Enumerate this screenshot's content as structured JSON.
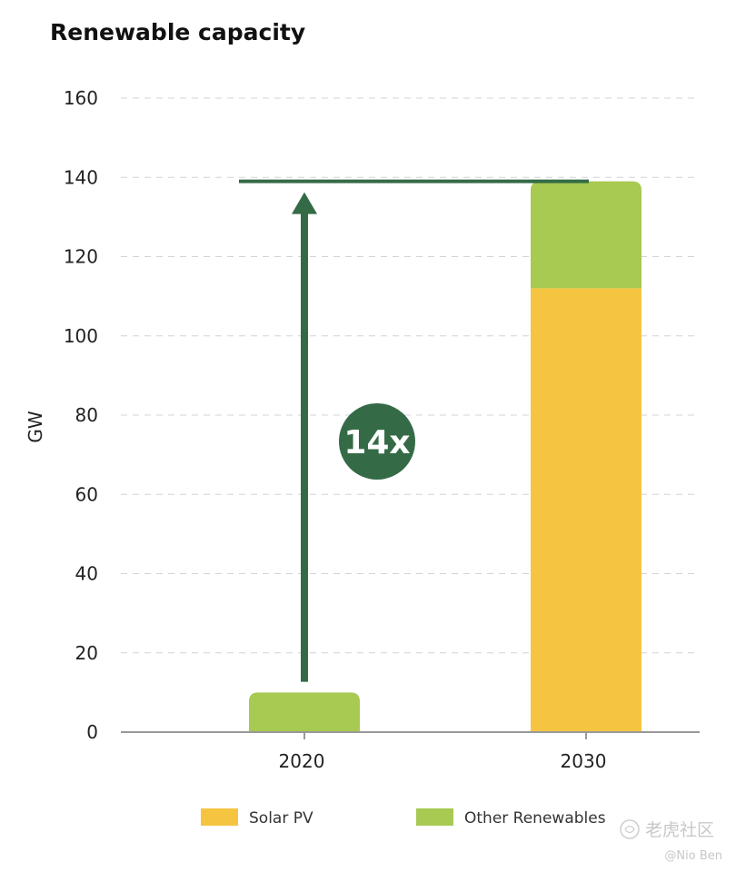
{
  "chart_data": {
    "type": "bar",
    "stacked": true,
    "title": "Renewable capacity",
    "xlabel": "",
    "ylabel": "GW",
    "categories": [
      "2020",
      "2030"
    ],
    "series": [
      {
        "name": "Solar PV",
        "color": "#f5c542",
        "values": [
          0,
          112
        ]
      },
      {
        "name": "Other Renewables",
        "color": "#a8c952",
        "values": [
          10,
          27
        ]
      }
    ],
    "ylim": [
      0,
      160
    ],
    "yticks": [
      0,
      20,
      40,
      60,
      80,
      100,
      120,
      140,
      160
    ],
    "grid": true,
    "legend": "bottom",
    "annotation": {
      "label": "14x",
      "from_value": 12,
      "to_value": 139,
      "color": "#346b46"
    }
  },
  "watermark": {
    "brand": "老虎社区",
    "user": "@Nio Ben"
  }
}
